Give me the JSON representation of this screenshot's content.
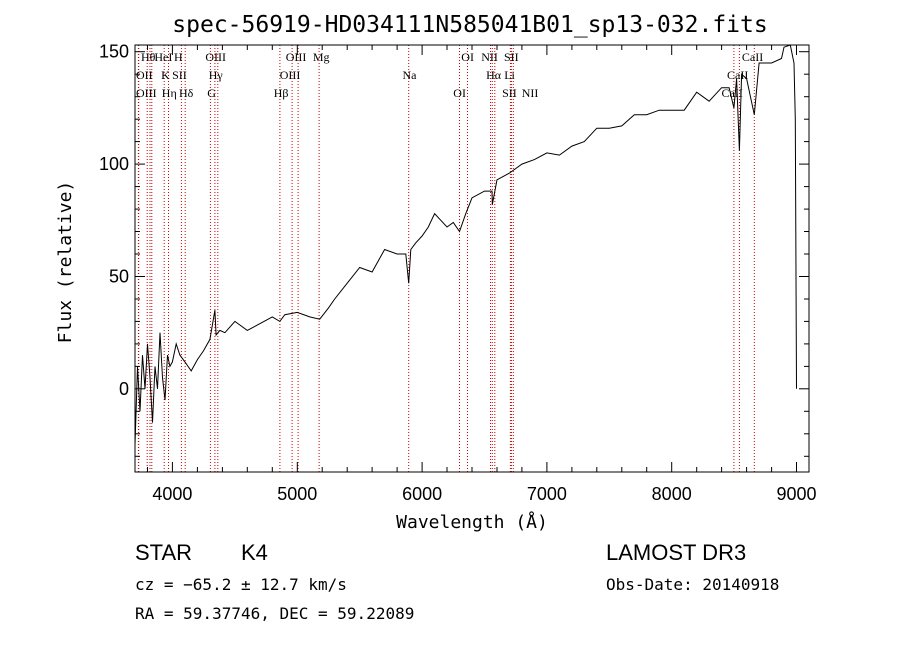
{
  "chart_data": {
    "type": "line",
    "title": "spec-56919-HD034111N585041B01_sp13-032.fits",
    "xlabel": "Wavelength (Å)",
    "ylabel": "Flux (relative)",
    "xlim": [
      3700,
      9100
    ],
    "ylim": [
      -37,
      153
    ],
    "xticks": [
      4000,
      5000,
      6000,
      7000,
      8000,
      9000
    ],
    "yticks": [
      0,
      50,
      100,
      150
    ],
    "series": [
      {
        "name": "spectrum",
        "x": [
          3700,
          3720,
          3740,
          3760,
          3780,
          3800,
          3820,
          3840,
          3860,
          3880,
          3900,
          3920,
          3940,
          3960,
          3980,
          4000,
          4030,
          4060,
          4100,
          4150,
          4200,
          4250,
          4300,
          4340,
          4350,
          4380,
          4420,
          4500,
          4600,
          4700,
          4800,
          4860,
          4900,
          5000,
          5100,
          5180,
          5250,
          5300,
          5400,
          5500,
          5600,
          5700,
          5800,
          5870,
          5893,
          5910,
          5950,
          6000,
          6050,
          6100,
          6150,
          6200,
          6250,
          6300,
          6350,
          6400,
          6500,
          6560,
          6563,
          6600,
          6700,
          6800,
          6900,
          7000,
          7100,
          7200,
          7300,
          7400,
          7500,
          7600,
          7700,
          7800,
          7900,
          8000,
          8100,
          8200,
          8300,
          8400,
          8460,
          8498,
          8520,
          8542,
          8560,
          8600,
          8662,
          8700,
          8800,
          8880,
          8900,
          8950,
          8980,
          8990,
          9000
        ],
        "values": [
          -25,
          10,
          -10,
          15,
          0,
          20,
          5,
          -15,
          10,
          0,
          25,
          5,
          -5,
          15,
          10,
          12,
          20,
          15,
          12,
          8,
          13,
          17,
          22,
          35,
          24,
          26,
          25,
          30,
          26,
          29,
          32,
          30,
          33,
          34,
          32,
          31,
          36,
          40,
          47,
          54,
          52,
          62,
          60,
          60,
          47,
          62,
          65,
          68,
          72,
          78,
          75,
          72,
          74,
          70,
          78,
          85,
          88,
          88,
          82,
          93,
          96,
          100,
          102,
          105,
          104,
          108,
          110,
          116,
          116,
          117,
          122,
          122,
          124,
          124,
          124,
          132,
          128,
          134,
          134,
          125,
          138,
          106,
          140,
          138,
          122,
          145,
          145,
          147,
          152,
          153,
          145,
          120,
          0
        ]
      }
    ],
    "spectral_lines": [
      {
        "label": "Hθ",
        "wavelength": 3798
      },
      {
        "label": "OII",
        "wavelength": 3727
      },
      {
        "label": "OIII",
        "wavelength": 3730
      },
      {
        "label": "HeI",
        "wavelength": 3820
      },
      {
        "label": "K",
        "wavelength": 3934
      },
      {
        "label": "Hη",
        "wavelength": 3835
      },
      {
        "label": "H",
        "wavelength": 3968
      },
      {
        "label": "SII",
        "wavelength": 4072
      },
      {
        "label": "Hδ",
        "wavelength": 4102
      },
      {
        "label": "OIII",
        "wavelength": 4363
      },
      {
        "label": "Hγ",
        "wavelength": 4340
      },
      {
        "label": "G",
        "wavelength": 4304
      },
      {
        "label": "OIII",
        "wavelength": 5007
      },
      {
        "label": "OIII",
        "wavelength": 4959
      },
      {
        "label": "Hβ",
        "wavelength": 4861
      },
      {
        "label": "Mg",
        "wavelength": 5175
      },
      {
        "label": "Na",
        "wavelength": 5893
      },
      {
        "label": "OI",
        "wavelength": 6300
      },
      {
        "label": "OI",
        "wavelength": 6364
      },
      {
        "label": "Hα",
        "wavelength": 6563
      },
      {
        "label": "SII",
        "wavelength": 6716
      },
      {
        "label": "NII",
        "wavelength": 6548
      },
      {
        "label": "Li",
        "wavelength": 6708
      },
      {
        "label": "NII",
        "wavelength": 6583
      },
      {
        "label": "SII",
        "wavelength": 6731
      },
      {
        "label": "CaII",
        "wavelength": 8542
      },
      {
        "label": "CaII",
        "wavelength": 8498
      },
      {
        "label": "CaII",
        "wavelength": 8662
      }
    ]
  },
  "info": {
    "object_type": "STAR",
    "subclass": "K4",
    "survey": "LAMOST DR3",
    "redshift": "cz = −65.2 ± 12.7 km/s",
    "obs_date": "Obs-Date: 20140918",
    "coords": "RA =  59.37746, DEC =  59.22089"
  },
  "colors": {
    "line_marker": "#cc0000",
    "spectrum": "#000000",
    "axes": "#000000"
  }
}
